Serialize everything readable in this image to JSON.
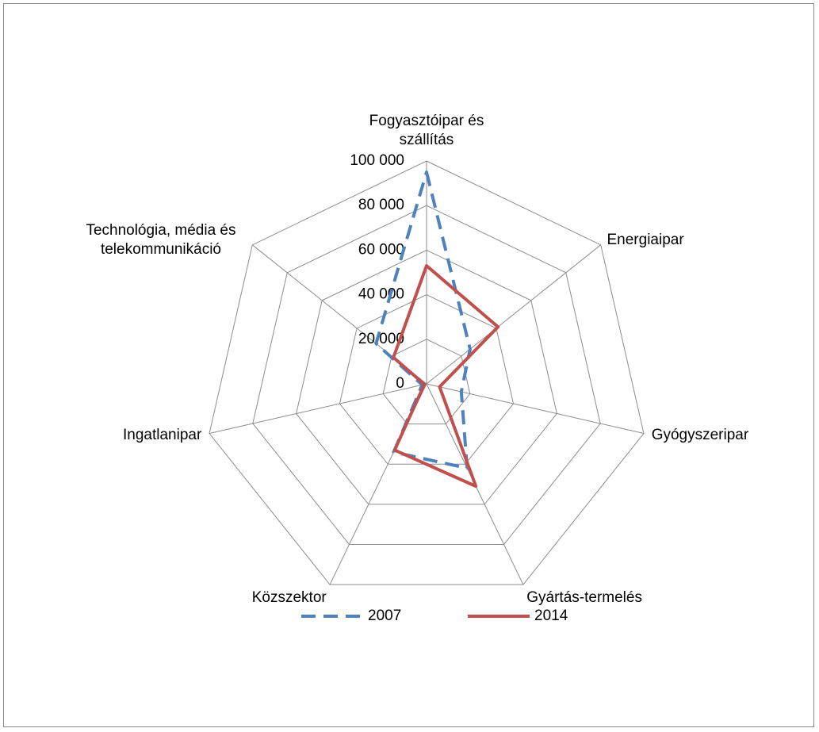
{
  "chart_data": {
    "type": "radar",
    "categories": [
      "Fogyasztóipar és szállítás",
      "Energiaipar",
      "Gyógyszeripar",
      "Gyártás-termelés",
      "Közszektor",
      "Ingatlanipar",
      "Technológia, média és telekommunikáció"
    ],
    "series": [
      {
        "name": "2007",
        "color": "#4f81bd",
        "dash": true,
        "values": [
          95000,
          25000,
          16000,
          42000,
          34000,
          2000,
          29000
        ]
      },
      {
        "name": "2014",
        "color": "#c0504d",
        "dash": false,
        "values": [
          53000,
          41000,
          6000,
          51000,
          33000,
          1000,
          19000
        ]
      }
    ],
    "ylim": [
      0,
      100000
    ],
    "yticks": [
      0,
      {
        "value": 20000,
        "label": "20 000"
      },
      {
        "value": 40000,
        "label": "40 000"
      },
      {
        "value": 60000,
        "label": "60 000"
      },
      {
        "value": 80000,
        "label": "80 000"
      },
      {
        "value": 100000,
        "label": "100 000"
      }
    ],
    "grid": true,
    "legend": "bottom"
  }
}
